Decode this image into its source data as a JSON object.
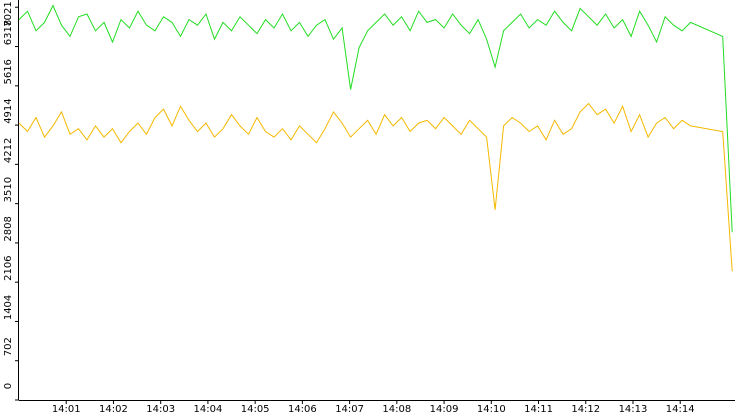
{
  "chart_data": {
    "type": "line",
    "x": [
      840.0,
      840.18,
      840.36,
      840.54,
      840.72,
      840.9,
      841.08,
      841.26,
      841.44,
      841.62,
      841.8,
      841.98,
      842.16,
      842.34,
      842.52,
      842.7,
      842.88,
      843.06,
      843.24,
      843.42,
      843.6,
      843.78,
      843.96,
      844.14,
      844.32,
      844.5,
      844.68,
      844.86,
      845.04,
      845.22,
      845.4,
      845.58,
      845.76,
      845.94,
      846.12,
      846.3,
      846.48,
      846.66,
      846.84,
      847.02,
      847.2,
      847.38,
      847.56,
      847.74,
      847.92,
      848.1,
      848.28,
      848.46,
      848.64,
      848.82,
      849.0,
      849.18,
      849.36,
      849.54,
      849.72,
      849.9,
      850.08,
      850.26,
      850.44,
      850.62,
      850.8,
      850.98,
      851.16,
      851.34,
      851.52,
      851.7,
      851.88,
      852.06,
      852.24,
      852.42,
      852.6,
      852.78,
      852.96,
      853.14,
      853.32,
      853.5,
      853.68,
      853.86,
      854.04,
      854.22,
      854.9,
      855.1
    ],
    "series": [
      {
        "color": "#22dd22",
        "values": [
          6800,
          6950,
          6600,
          6750,
          7050,
          6700,
          6500,
          6850,
          6900,
          6600,
          6750,
          6400,
          6800,
          6650,
          6950,
          6700,
          6600,
          6850,
          6750,
          6500,
          6800,
          6700,
          6900,
          6450,
          6750,
          6600,
          6850,
          6700,
          6550,
          6800,
          6650,
          6900,
          6600,
          6750,
          6500,
          6700,
          6800,
          6450,
          6650,
          5550,
          6300,
          6600,
          6750,
          6900,
          6700,
          6850,
          6600,
          6950,
          6750,
          6800,
          6650,
          6900,
          6700,
          6550,
          6800,
          6450,
          5950,
          6600,
          6750,
          6900,
          6650,
          6800,
          6700,
          6950,
          6750,
          6600,
          7000,
          6850,
          6700,
          6900,
          6650,
          6800,
          6500,
          6950,
          6700,
          6400,
          6850,
          6700,
          6600,
          6750,
          6500,
          3000
        ]
      },
      {
        "color": "#f5b800",
        "values": [
          4950,
          4800,
          5050,
          4700,
          4900,
          5150,
          4750,
          4850,
          4650,
          4900,
          4700,
          4850,
          4600,
          4800,
          4950,
          4750,
          5050,
          5200,
          4900,
          5250,
          5000,
          4800,
          4950,
          4700,
          4850,
          5100,
          4900,
          4750,
          5050,
          4800,
          4700,
          4850,
          4650,
          4900,
          4750,
          4600,
          4850,
          5150,
          4950,
          4700,
          4850,
          5000,
          4750,
          5100,
          4900,
          5050,
          4800,
          4950,
          5000,
          4850,
          5050,
          4900,
          4750,
          5000,
          4850,
          4700,
          3400,
          4900,
          5050,
          4950,
          4800,
          4900,
          4650,
          5000,
          4750,
          4850,
          5150,
          5300,
          5100,
          5200,
          4950,
          5250,
          4800,
          5100,
          4700,
          4950,
          5050,
          4850,
          5000,
          4900,
          4800,
          2300
        ]
      }
    ],
    "xlim": [
      840,
      855.16
    ],
    "xticks": [
      {
        "value": 841,
        "label": "14:01"
      },
      {
        "value": 842,
        "label": "14:02"
      },
      {
        "value": 843,
        "label": "14:03"
      },
      {
        "value": 844,
        "label": "14:04"
      },
      {
        "value": 845,
        "label": "14:05"
      },
      {
        "value": 846,
        "label": "14:06"
      },
      {
        "value": 847,
        "label": "14:07"
      },
      {
        "value": 848,
        "label": "14:08"
      },
      {
        "value": 849,
        "label": "14:09"
      },
      {
        "value": 850,
        "label": "14:10"
      },
      {
        "value": 851,
        "label": "14:11"
      },
      {
        "value": 852,
        "label": "14:12"
      },
      {
        "value": 853,
        "label": "14:13"
      },
      {
        "value": 854,
        "label": "14:14"
      }
    ],
    "ylim": [
      0,
      7150
    ],
    "yticks": [
      0,
      702,
      1404,
      2106,
      2808,
      3510,
      4212,
      4914,
      5616,
      6318,
      7021
    ]
  }
}
